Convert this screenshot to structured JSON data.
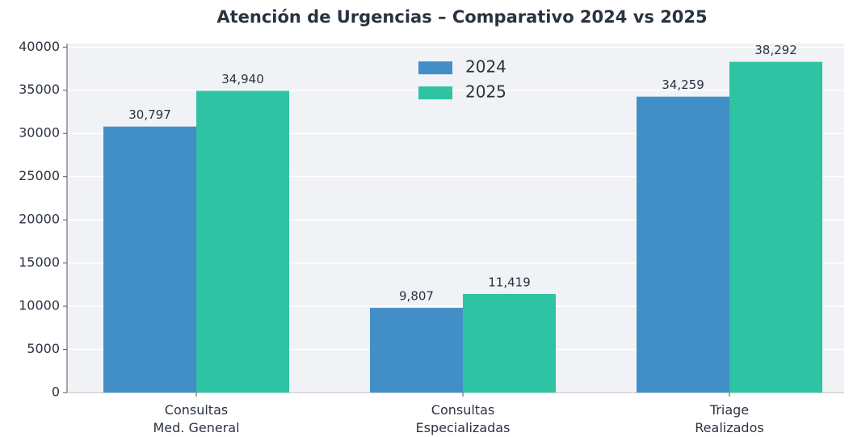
{
  "chart_data": {
    "type": "bar",
    "title": "Atención de Urgencias – Comparativo 2024 vs 2025",
    "categories": [
      "Consultas\nMed. General",
      "Consultas\nEspecializadas",
      "Triage\nRealizados"
    ],
    "series": [
      {
        "name": "2024",
        "color": "#428fc8",
        "values": [
          30797,
          9807,
          34259
        ],
        "value_labels": [
          "30,797",
          "9,807",
          "34,259"
        ]
      },
      {
        "name": "2025",
        "color": "#2ec3a3",
        "values": [
          34940,
          11419,
          38292
        ],
        "value_labels": [
          "34,940",
          "11,419",
          "38,292"
        ]
      }
    ],
    "ylim": [
      0,
      40400
    ],
    "yticks": [
      0,
      5000,
      10000,
      15000,
      20000,
      25000,
      30000,
      35000,
      40000
    ],
    "grid": true,
    "legend": "upper center"
  }
}
